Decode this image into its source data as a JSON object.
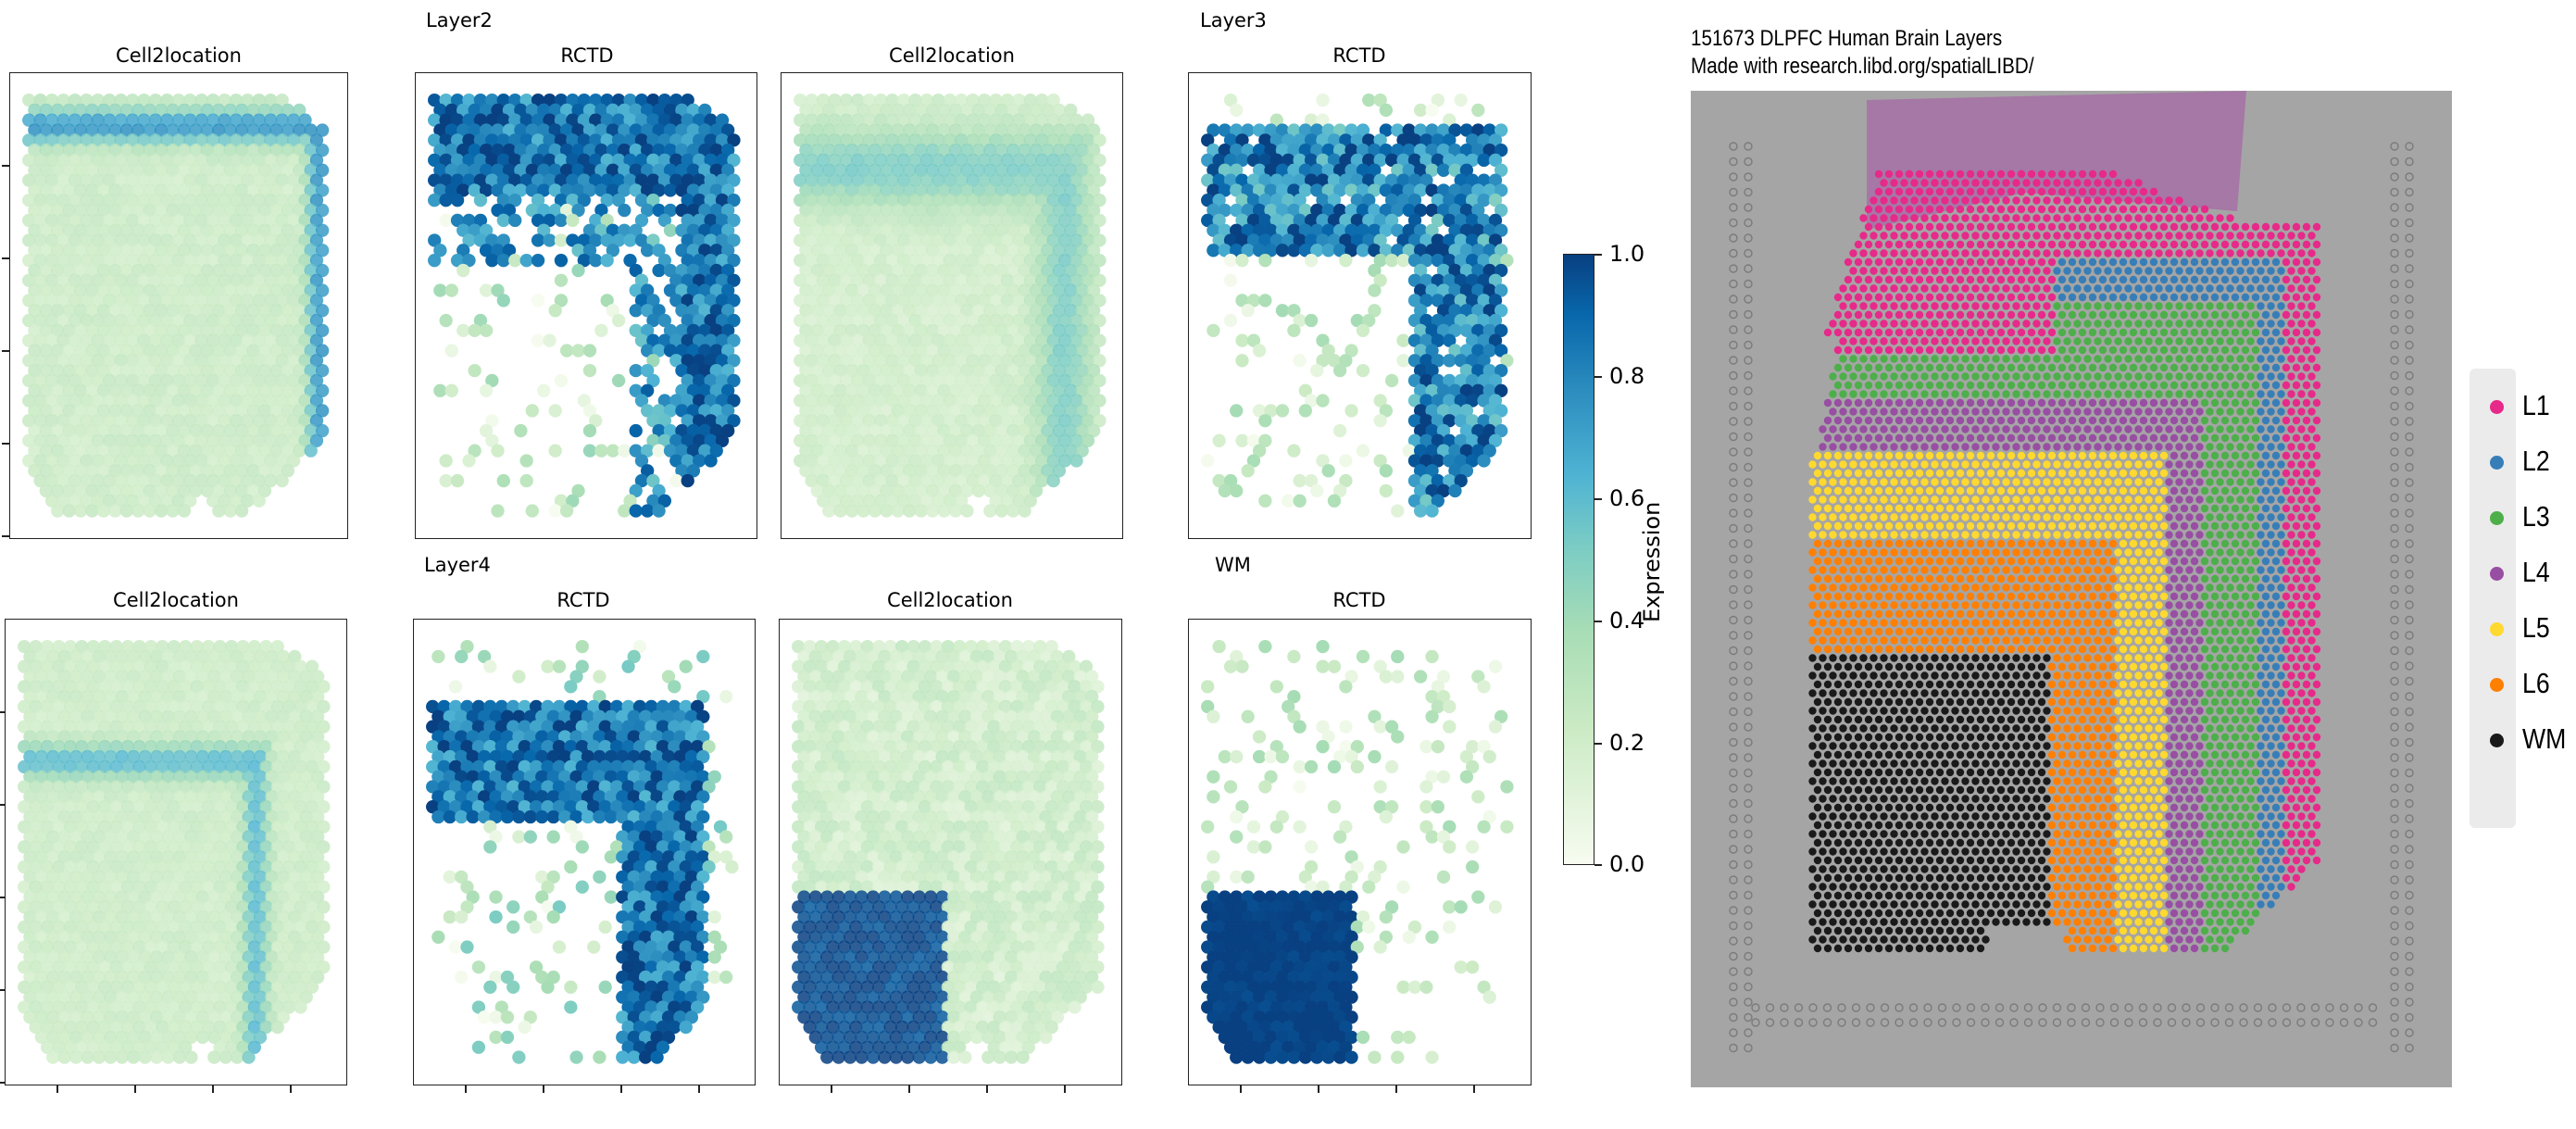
{
  "groups": [
    {
      "title": "Layer2"
    },
    {
      "title": "Layer3"
    },
    {
      "title": "Layer4"
    },
    {
      "title": "WM"
    }
  ],
  "panels": [
    {
      "title": "Cell2location"
    },
    {
      "title": "RCTD"
    },
    {
      "title": "Cell2location"
    },
    {
      "title": "RCTD"
    },
    {
      "title": "Cell2location"
    },
    {
      "title": "RCTD"
    },
    {
      "title": "Cell2location"
    },
    {
      "title": "RCTD"
    }
  ],
  "colorbar": {
    "label": "Expression",
    "ticks": [
      "1.0",
      "0.8",
      "0.6",
      "0.4",
      "0.2",
      "0.0"
    ],
    "colors": [
      "#f7fcf0",
      "#ccebc5",
      "#a8ddb5",
      "#7bccc4",
      "#4eb3d3",
      "#2b8cbe",
      "#0868ac",
      "#084081"
    ]
  },
  "tissue": {
    "title_line1": "151673 DLPFC Human Brain Layers",
    "title_line2": "Made with research.libd.org/spatialLIBD/"
  },
  "legend": {
    "items": [
      {
        "label": "L1",
        "color": "#e7298a"
      },
      {
        "label": "L2",
        "color": "#377eb8"
      },
      {
        "label": "L3",
        "color": "#4daf4a"
      },
      {
        "label": "L4",
        "color": "#984ea3"
      },
      {
        "label": "L5",
        "color": "#ffd92f"
      },
      {
        "label": "L6",
        "color": "#ff7f00"
      },
      {
        "label": "WM",
        "color": "#1a1a1a"
      }
    ]
  }
}
